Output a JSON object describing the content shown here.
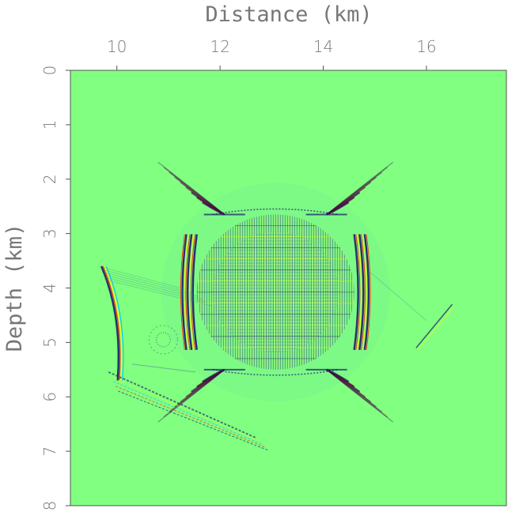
{
  "chart_data": {
    "type": "heatmap",
    "title": "",
    "xlabel": "Distance (km)",
    "ylabel": "Depth (km)",
    "xlim": [
      9.1,
      17.55
    ],
    "ylim": [
      0,
      8
    ],
    "x_ticks": [
      10,
      12,
      14,
      16
    ],
    "y_ticks": [
      0,
      1,
      2,
      3,
      4,
      5,
      6,
      7,
      8
    ],
    "x_axis_position": "top",
    "y_axis_direction": "downward",
    "grid": false,
    "colormap": [
      "#7f0000",
      "#ff2a00",
      "#ffff00",
      "#80ff80",
      "#00c8ff",
      "#1a1a6e"
    ],
    "background_color": "#80ff80",
    "features": [
      {
        "feature": "central-wavefront-body",
        "x_range": [
          11.55,
          14.6
        ],
        "depth_range": [
          2.65,
          5.5
        ]
      },
      {
        "feature": "left-curved-reflector",
        "x_range": [
          9.7,
          10.2
        ],
        "depth_range": [
          3.6,
          5.7
        ]
      },
      {
        "feature": "lower-left-streak",
        "x_range": [
          10.3,
          12.7
        ],
        "depth_range": [
          5.4,
          6.9
        ]
      },
      {
        "feature": "right-edge-streak",
        "x_range": [
          15.8,
          16.5
        ],
        "depth_range": [
          4.3,
          5.1
        ]
      }
    ]
  }
}
